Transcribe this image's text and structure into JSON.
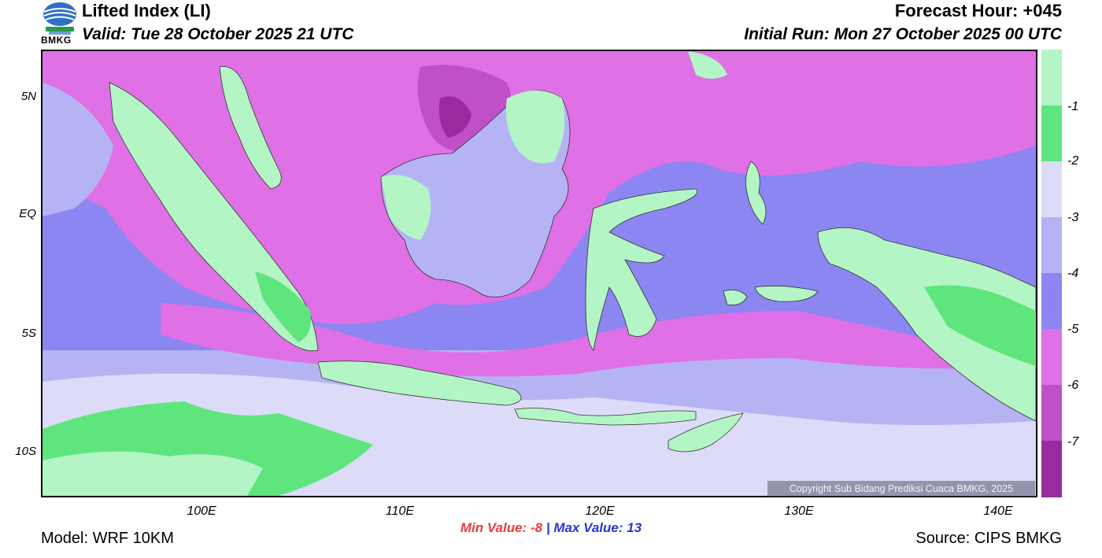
{
  "header": {
    "title": "Lifted Index (LI)",
    "valid": "Valid: Tue 28 October 2025 21 UTC",
    "forecast_hour": "Forecast Hour: +045",
    "initial_run": "Initial Run: Mon 27 October 2025 00 UTC",
    "logo_text": "BMKG"
  },
  "map": {
    "lat_labels": [
      "5N",
      "EQ",
      "5S",
      "10S"
    ],
    "lon_labels": [
      "100E",
      "110E",
      "120E",
      "130E",
      "140E"
    ],
    "copyright": "Copyright Sub Bidang Prediksi Cuaca BMKG, 2025",
    "colors": {
      "land_green": "#b3f5c5",
      "green_mid": "#5fe57d",
      "lavender_light": "#dcdcf8",
      "lavender": "#b6b3f5",
      "blue_violet": "#8b86f2",
      "magenta": "#e070e6",
      "purple_mid": "#c050c8",
      "purple_dark": "#9a2a9e"
    }
  },
  "legend": {
    "labels": [
      "-1",
      "-2",
      "-3",
      "-4",
      "-5",
      "-6",
      "-7"
    ],
    "swatches": [
      "#b3f5c5",
      "#5fe57d",
      "#dcdcf8",
      "#b6b3f5",
      "#8b86f2",
      "#e070e6",
      "#c050c8",
      "#9a2a9e"
    ]
  },
  "stats": {
    "min_label": "Min Value:",
    "min_value": "-8",
    "separator": "|",
    "max_label": "Max Value:",
    "max_value": "13"
  },
  "footer": {
    "model": "Model: WRF 10KM",
    "source": "Source: CIPS BMKG"
  }
}
